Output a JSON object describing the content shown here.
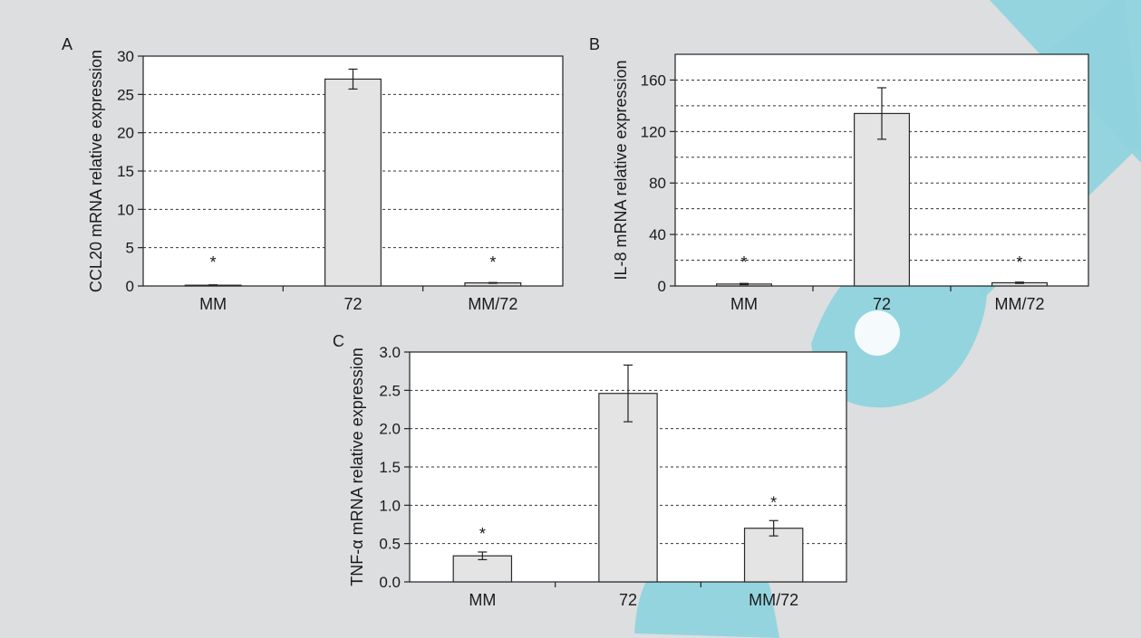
{
  "colors": {
    "figure_background": "#dcdee0",
    "plot_background": "#ffffff",
    "bar_fill": "#e4e4e4",
    "bar_stroke": "#2a2a2a",
    "grid": "#333333",
    "watermark": "#8fd3dd"
  },
  "chart_data": [
    {
      "type": "bar",
      "panel": "A",
      "ylabel": "CCL20 mRNA relative expression",
      "categories": [
        "MM",
        "72",
        "MM/72"
      ],
      "values": [
        0.1,
        27.0,
        0.4
      ],
      "errors": [
        0.05,
        1.3,
        0.05
      ],
      "significance": [
        "*",
        "",
        "*"
      ],
      "ylim": [
        0,
        30
      ],
      "yticks": [
        "0",
        "5",
        "10",
        "15",
        "20",
        "25",
        "30"
      ],
      "ytick_values": [
        0,
        5,
        10,
        15,
        20,
        25,
        30
      ],
      "grid": "dotted horizontal"
    },
    {
      "type": "bar",
      "panel": "B",
      "ylabel": "IL-8 mRNA relative expression",
      "categories": [
        "MM",
        "72",
        "MM/72"
      ],
      "values": [
        1.5,
        134,
        2.5
      ],
      "errors": [
        0.5,
        20,
        0.5
      ],
      "significance": [
        "*",
        "",
        "*"
      ],
      "ylim": [
        0,
        180
      ],
      "yticks": [
        "0",
        "40",
        "80",
        "120",
        "160"
      ],
      "ytick_values": [
        0,
        40,
        80,
        120,
        160
      ],
      "grid_values": [
        20,
        40,
        60,
        80,
        100,
        120,
        140,
        160
      ],
      "grid": "dotted horizontal"
    },
    {
      "type": "bar",
      "panel": "C",
      "ylabel": "TNF-α mRNA relative expression",
      "categories": [
        "MM",
        "72",
        "MM/72"
      ],
      "values": [
        0.34,
        2.46,
        0.7
      ],
      "errors": [
        0.05,
        0.37,
        0.1
      ],
      "significance": [
        "*",
        "",
        "*"
      ],
      "ylim": [
        0,
        3.0
      ],
      "yticks": [
        "0.0",
        "0.5",
        "1.0",
        "1.5",
        "2.0",
        "2.5",
        "3.0"
      ],
      "ytick_values": [
        0,
        0.5,
        1.0,
        1.5,
        2.0,
        2.5,
        3.0
      ],
      "grid": "dotted horizontal"
    }
  ]
}
